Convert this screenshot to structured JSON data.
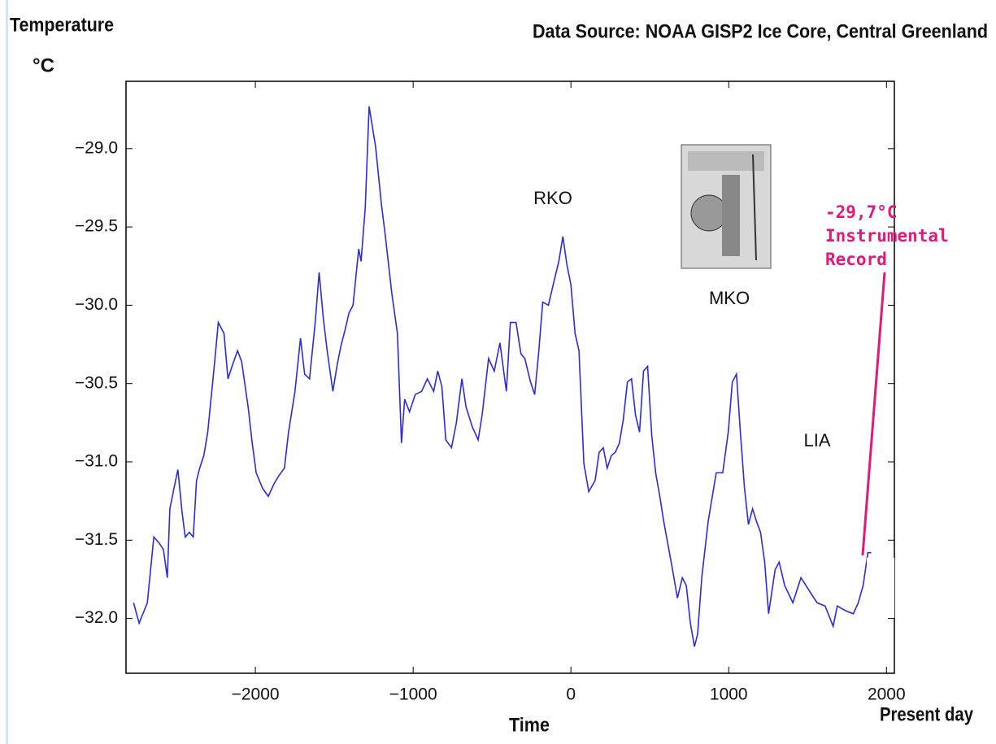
{
  "chart_data": {
    "type": "line",
    "title": "Data Source: NOAA GISP2 Ice Core, Central Greenland",
    "ylabel": "Temperature",
    "yunit": "°C",
    "xlabel": "Time",
    "xnote": "Present day",
    "annotations": [
      "RKO",
      "MKO",
      "LIA"
    ],
    "callout": [
      "-29,7°C",
      "Instrumental",
      "Record"
    ],
    "color": "#2b2bd8",
    "callout_color": "#e0197a",
    "xlim": [
      -2820,
      2050
    ],
    "xticks": [
      {
        "value": -2000,
        "label": "−2000"
      },
      {
        "value": -1000,
        "label": "−1000"
      },
      0,
      1000,
      2000
    ],
    "ylim": [
      -32.35,
      -28.57
    ],
    "yticks": [
      {
        "value": -32,
        "label": "−32.0"
      },
      {
        "value": -31.5,
        "label": "−31.5"
      },
      {
        "value": -31,
        "label": "−31.0"
      },
      {
        "value": -30.5,
        "label": "−30.5"
      },
      {
        "value": -30,
        "label": "−30.0"
      },
      {
        "value": -29.5,
        "label": "−29.5"
      },
      {
        "value": -29,
        "label": "−29.0"
      }
    ],
    "x": [
      -2772,
      -2737,
      -2685,
      -2644,
      -2609,
      -2583,
      -2558,
      -2542,
      -2506,
      -2491,
      -2465,
      -2445,
      -2419,
      -2394,
      -2373,
      -2353,
      -2327,
      -2302,
      -2261,
      -2235,
      -2199,
      -2174,
      -2148,
      -2113,
      -2087,
      -2046,
      -2020,
      -1995,
      -1954,
      -1918,
      -1882,
      -1852,
      -1816,
      -1790,
      -1749,
      -1714,
      -1688,
      -1657,
      -1621,
      -1596,
      -1570,
      -1545,
      -1509,
      -1483,
      -1458,
      -1432,
      -1407,
      -1381,
      -1345,
      -1330,
      -1304,
      -1279,
      -1238,
      -1202,
      -1176,
      -1136,
      -1100,
      -1074,
      -1054,
      -1023,
      -987,
      -946,
      -910,
      -870,
      -844,
      -818,
      -793,
      -757,
      -726,
      -691,
      -665,
      -624,
      -588,
      -563,
      -522,
      -486,
      -450,
      -409,
      -384,
      -348,
      -317,
      -292,
      -256,
      -230,
      -205,
      -179,
      -143,
      -113,
      -77,
      -51,
      -26,
      0,
      26,
      51,
      82,
      113,
      153,
      179,
      205,
      230,
      256,
      281,
      307,
      332,
      358,
      384,
      409,
      435,
      460,
      486,
      512,
      537,
      563,
      588,
      639,
      675,
      706,
      731,
      757,
      783,
      803,
      829,
      870,
      921,
      962,
      997,
      1023,
      1049,
      1074,
      1100,
      1125,
      1151,
      1176,
      1202,
      1228,
      1253,
      1294,
      1320,
      1355,
      1407,
      1458,
      1509,
      1560,
      1611,
      1662,
      1688,
      1739,
      1790,
      1821,
      1852,
      1882,
      1903
    ],
    "values": [
      -31.9,
      -32.03,
      -31.9,
      -31.48,
      -31.52,
      -31.56,
      -31.74,
      -31.3,
      -31.12,
      -31.05,
      -31.32,
      -31.48,
      -31.45,
      -31.48,
      -31.12,
      -31.04,
      -30.96,
      -30.81,
      -30.39,
      -30.11,
      -30.18,
      -30.47,
      -30.39,
      -30.29,
      -30.36,
      -30.65,
      -30.88,
      -31.07,
      -31.17,
      -31.22,
      -31.14,
      -31.09,
      -31.04,
      -30.81,
      -30.55,
      -30.21,
      -30.44,
      -30.47,
      -30.11,
      -29.79,
      -30.08,
      -30.29,
      -30.55,
      -30.39,
      -30.26,
      -30.16,
      -30.05,
      -30.0,
      -29.64,
      -29.72,
      -29.38,
      -28.73,
      -28.99,
      -29.35,
      -29.56,
      -29.92,
      -30.18,
      -30.88,
      -30.6,
      -30.68,
      -30.57,
      -30.55,
      -30.47,
      -30.55,
      -30.42,
      -30.52,
      -30.86,
      -30.91,
      -30.75,
      -30.47,
      -30.65,
      -30.78,
      -30.86,
      -30.7,
      -30.34,
      -30.42,
      -30.24,
      -30.55,
      -30.11,
      -30.11,
      -30.31,
      -30.34,
      -30.49,
      -30.57,
      -30.31,
      -29.98,
      -30.0,
      -29.87,
      -29.72,
      -29.56,
      -29.74,
      -29.87,
      -30.18,
      -30.29,
      -31.01,
      -31.19,
      -31.12,
      -30.94,
      -30.91,
      -31.04,
      -30.96,
      -30.94,
      -30.88,
      -30.73,
      -30.49,
      -30.47,
      -30.7,
      -30.81,
      -30.42,
      -30.39,
      -30.83,
      -31.07,
      -31.22,
      -31.38,
      -31.66,
      -31.87,
      -31.74,
      -31.79,
      -32.03,
      -32.18,
      -32.1,
      -31.74,
      -31.38,
      -31.07,
      -31.07,
      -30.81,
      -30.49,
      -30.44,
      -30.81,
      -31.17,
      -31.4,
      -31.3,
      -31.38,
      -31.45,
      -31.64,
      -31.97,
      -31.69,
      -31.64,
      -31.79,
      -31.9,
      -31.74,
      -31.82,
      -31.9,
      -31.92,
      -32.05,
      -31.92,
      -31.95,
      -31.97,
      -31.9,
      -31.79,
      -31.58,
      -31.58
    ]
  }
}
